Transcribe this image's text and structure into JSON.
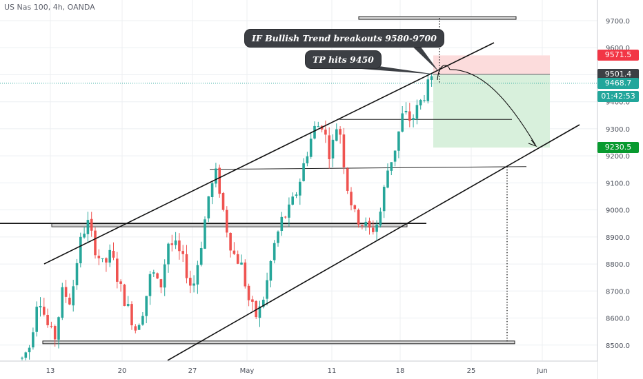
{
  "header": {
    "symbol_title": "US Nas 100, 4h, OANDA"
  },
  "annotations": {
    "callout_breakout": "IF Bullish Trend breakouts 9580-9700",
    "callout_tp": "TP hits 9450"
  },
  "price_tags": {
    "stop": {
      "text": "9571.5",
      "color": "#f23645"
    },
    "entry": {
      "text": "9501.4",
      "color": "#3c3f44"
    },
    "last": {
      "text": "9468.7",
      "color": "#22a69b"
    },
    "countdown": {
      "text": "01:42:53",
      "color": "#22a69b"
    },
    "target": {
      "text": "9230.5",
      "color": "#089a2f"
    }
  },
  "colors": {
    "up": "#26a69a",
    "down": "#ef5350",
    "grid": "#eceff2",
    "risk_zone": "#fcdcdc",
    "reward_zone": "#d8f0dc"
  },
  "chart_data": {
    "type": "candlestick",
    "title": "US Nas 100, 4h, OANDA",
    "y_axis": {
      "min": 8475,
      "max": 9760,
      "ticks": [
        8500,
        8600,
        8700,
        8800,
        8900,
        9000,
        9100,
        9200,
        9300,
        9400,
        9500,
        9600,
        9700
      ],
      "tick_labels": [
        "8500.0",
        "8600.0",
        "8700.0",
        "8800.0",
        "8900.0",
        "9000.0",
        "9100.0",
        "9200.0",
        "9300.0",
        "9400.0",
        "9500.0",
        "9600.0",
        "9700.0"
      ]
    },
    "x_axis": {
      "tick_labels": [
        "13",
        "20",
        "27",
        "May",
        "11",
        "18",
        "25",
        "Jun"
      ]
    },
    "price_path": [
      [
        0,
        8450
      ],
      [
        2,
        8500
      ],
      [
        4,
        8700
      ],
      [
        6,
        8580
      ],
      [
        8,
        8520
      ],
      [
        10,
        8700
      ],
      [
        12,
        8660
      ],
      [
        14,
        8860
      ],
      [
        16,
        8960
      ],
      [
        18,
        8860
      ],
      [
        20,
        8790
      ],
      [
        22,
        8840
      ],
      [
        24,
        8720
      ],
      [
        26,
        8640
      ],
      [
        28,
        8560
      ],
      [
        30,
        8640
      ],
      [
        32,
        8780
      ],
      [
        34,
        8700
      ],
      [
        36,
        8880
      ],
      [
        38,
        8860
      ],
      [
        40,
        8800
      ],
      [
        42,
        8700
      ],
      [
        44,
        8860
      ],
      [
        46,
        9050
      ],
      [
        48,
        9140
      ],
      [
        50,
        8960
      ],
      [
        52,
        8840
      ],
      [
        54,
        8800
      ],
      [
        56,
        8660
      ],
      [
        58,
        8600
      ],
      [
        60,
        8700
      ],
      [
        62,
        8860
      ],
      [
        64,
        8960
      ],
      [
        66,
        9000
      ],
      [
        68,
        9080
      ],
      [
        70,
        9200
      ],
      [
        72,
        9300
      ],
      [
        74,
        9320
      ],
      [
        76,
        9200
      ],
      [
        78,
        9340
      ],
      [
        80,
        9100
      ],
      [
        82,
        8980
      ],
      [
        84,
        8950
      ],
      [
        86,
        8920
      ],
      [
        88,
        8960
      ],
      [
        90,
        9140
      ],
      [
        92,
        9230
      ],
      [
        94,
        9360
      ],
      [
        96,
        9330
      ],
      [
        98,
        9390
      ],
      [
        100,
        9455
      ],
      [
        101,
        9470
      ]
    ],
    "levels": {
      "stop_loss": 9571.5,
      "entry": 9501.4,
      "last_price": 9468.7,
      "take_profit": 9230.5,
      "top_zone": 9710,
      "support_zone": 8945,
      "bottom_zone": 8510,
      "resistance_high": 9335,
      "resistance_mid": 9155
    },
    "channel": {
      "upper": [
        [
          0,
          8800
        ],
        [
          166,
          9600
        ]
      ],
      "lower": [
        [
          45,
          8460
        ],
        [
          196,
          9320
        ]
      ]
    }
  }
}
